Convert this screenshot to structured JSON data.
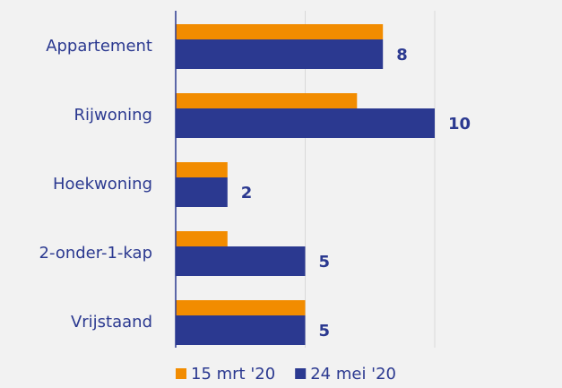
{
  "chart_data": {
    "type": "bar",
    "orientation": "horizontal",
    "categories": [
      "Appartement",
      "Rijwoning",
      "Hoekwoning",
      "2-onder-1-kap",
      "Vrijstaand"
    ],
    "series": [
      {
        "name": "15 mrt '20",
        "color": "#f28c00",
        "values": [
          8,
          7,
          2,
          2,
          5
        ],
        "data_labels": false
      },
      {
        "name": "24 mei '20",
        "color": "#2b3990",
        "values": [
          8,
          10,
          2,
          5,
          5
        ],
        "data_labels": true
      }
    ],
    "xlim": [
      0,
      12
    ],
    "xticks": [
      0,
      5,
      10
    ],
    "grid": true,
    "legend": "bottom"
  }
}
